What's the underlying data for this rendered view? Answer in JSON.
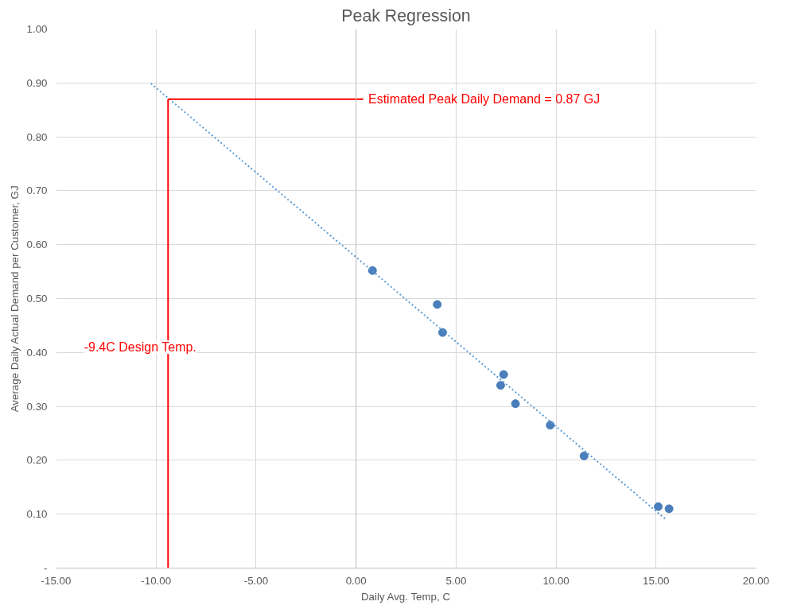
{
  "chart_data": {
    "type": "scatter",
    "title": "Peak Regression",
    "xlabel": "Daily Avg. Temp, C",
    "ylabel": "Average Daily Actual Demand per Customer, GJ",
    "series": [
      {
        "color": "#4a7ebb",
        "marker": "circle",
        "x": [
          0.82,
          4.06,
          4.33,
          7.38,
          7.23,
          7.97,
          9.71,
          11.4,
          15.11,
          15.65
        ],
        "values": [
          0.552,
          0.489,
          0.437,
          0.359,
          0.339,
          0.305,
          0.265,
          0.208,
          0.114,
          0.11
        ]
      },
      {
        "type": "line",
        "color": "#5b9bd5",
        "line_style": "dotted",
        "x": [
          -10.26,
          15.53
        ],
        "values": [
          0.899,
          0.089
        ]
      },
      {
        "type": "line",
        "color": "#ff0000",
        "line_style": "solid",
        "x": [
          -9.4,
          0.36
        ],
        "values": [
          0.87,
          0.87
        ]
      },
      {
        "type": "line",
        "color": "#ff0000",
        "line_style": "solid",
        "x": [
          -9.4,
          -9.4
        ],
        "values": [
          0,
          0.87
        ]
      }
    ],
    "annotations": [
      "Estimated Peak Daily Demand = 0.87 GJ",
      "-9.4C Design Temp."
    ],
    "xlim": [
      -15,
      20
    ],
    "xticks": [
      {
        "value": -15,
        "label": "-15.00"
      },
      {
        "value": -10,
        "label": "-10.00"
      },
      {
        "value": -5,
        "label": "-5.00"
      },
      {
        "value": 0,
        "label": "0.00"
      },
      {
        "value": 5,
        "label": "5.00"
      },
      {
        "value": 10,
        "label": "10.00"
      },
      {
        "value": 15,
        "label": "15.00"
      },
      {
        "value": 20,
        "label": "20.00"
      }
    ],
    "ylim": [
      0,
      1
    ],
    "yticks": [
      {
        "value": 0,
        "label": "-"
      },
      {
        "value": 0.1,
        "label": "0.10"
      },
      {
        "value": 0.2,
        "label": "0.20"
      },
      {
        "value": 0.3,
        "label": "0.30"
      },
      {
        "value": 0.4,
        "label": "0.40"
      },
      {
        "value": 0.5,
        "label": "0.50"
      },
      {
        "value": 0.6,
        "label": "0.60"
      },
      {
        "value": 0.7,
        "label": "0.70"
      },
      {
        "value": 0.8,
        "label": "0.80"
      },
      {
        "value": 0.9,
        "label": "0.90"
      },
      {
        "value": 1.0,
        "label": "1.00"
      }
    ],
    "grid": true
  }
}
